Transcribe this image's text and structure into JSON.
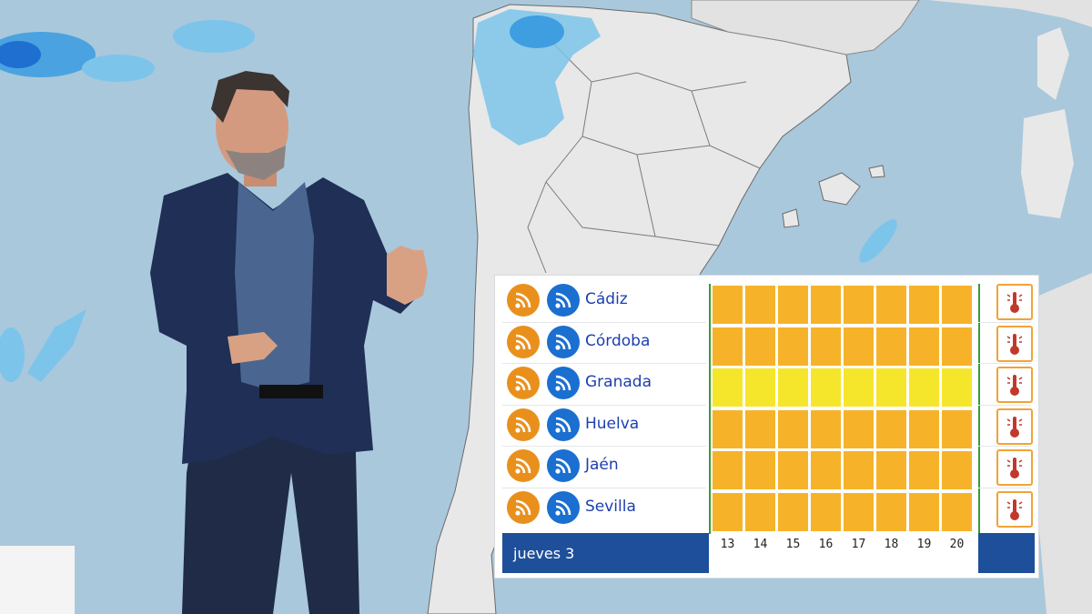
{
  "broadcast": {
    "presenter": "presenter",
    "map": "map"
  },
  "alert_table": {
    "provinces": [
      "Cádiz",
      "Córdoba",
      "Granada",
      "Huelva",
      "Jaén",
      "Sevilla"
    ],
    "row_levels": [
      "orange",
      "orange",
      "yellow",
      "orange",
      "orange",
      "orange"
    ],
    "hours": [
      "13",
      "14",
      "15",
      "16",
      "17",
      "18",
      "19",
      "20"
    ],
    "day_label": "jueves 3",
    "left_icon": "rss-feed-icon",
    "right_icon": "thermometer-warning-icon",
    "colors": {
      "orange_level": "#f6b32a",
      "yellow_level": "#f6e62b",
      "orange_rss": "#e9901c",
      "blue_rss": "#1a6fd0",
      "footer": "#1e4f9a",
      "province_text": "#1d3fae"
    }
  }
}
